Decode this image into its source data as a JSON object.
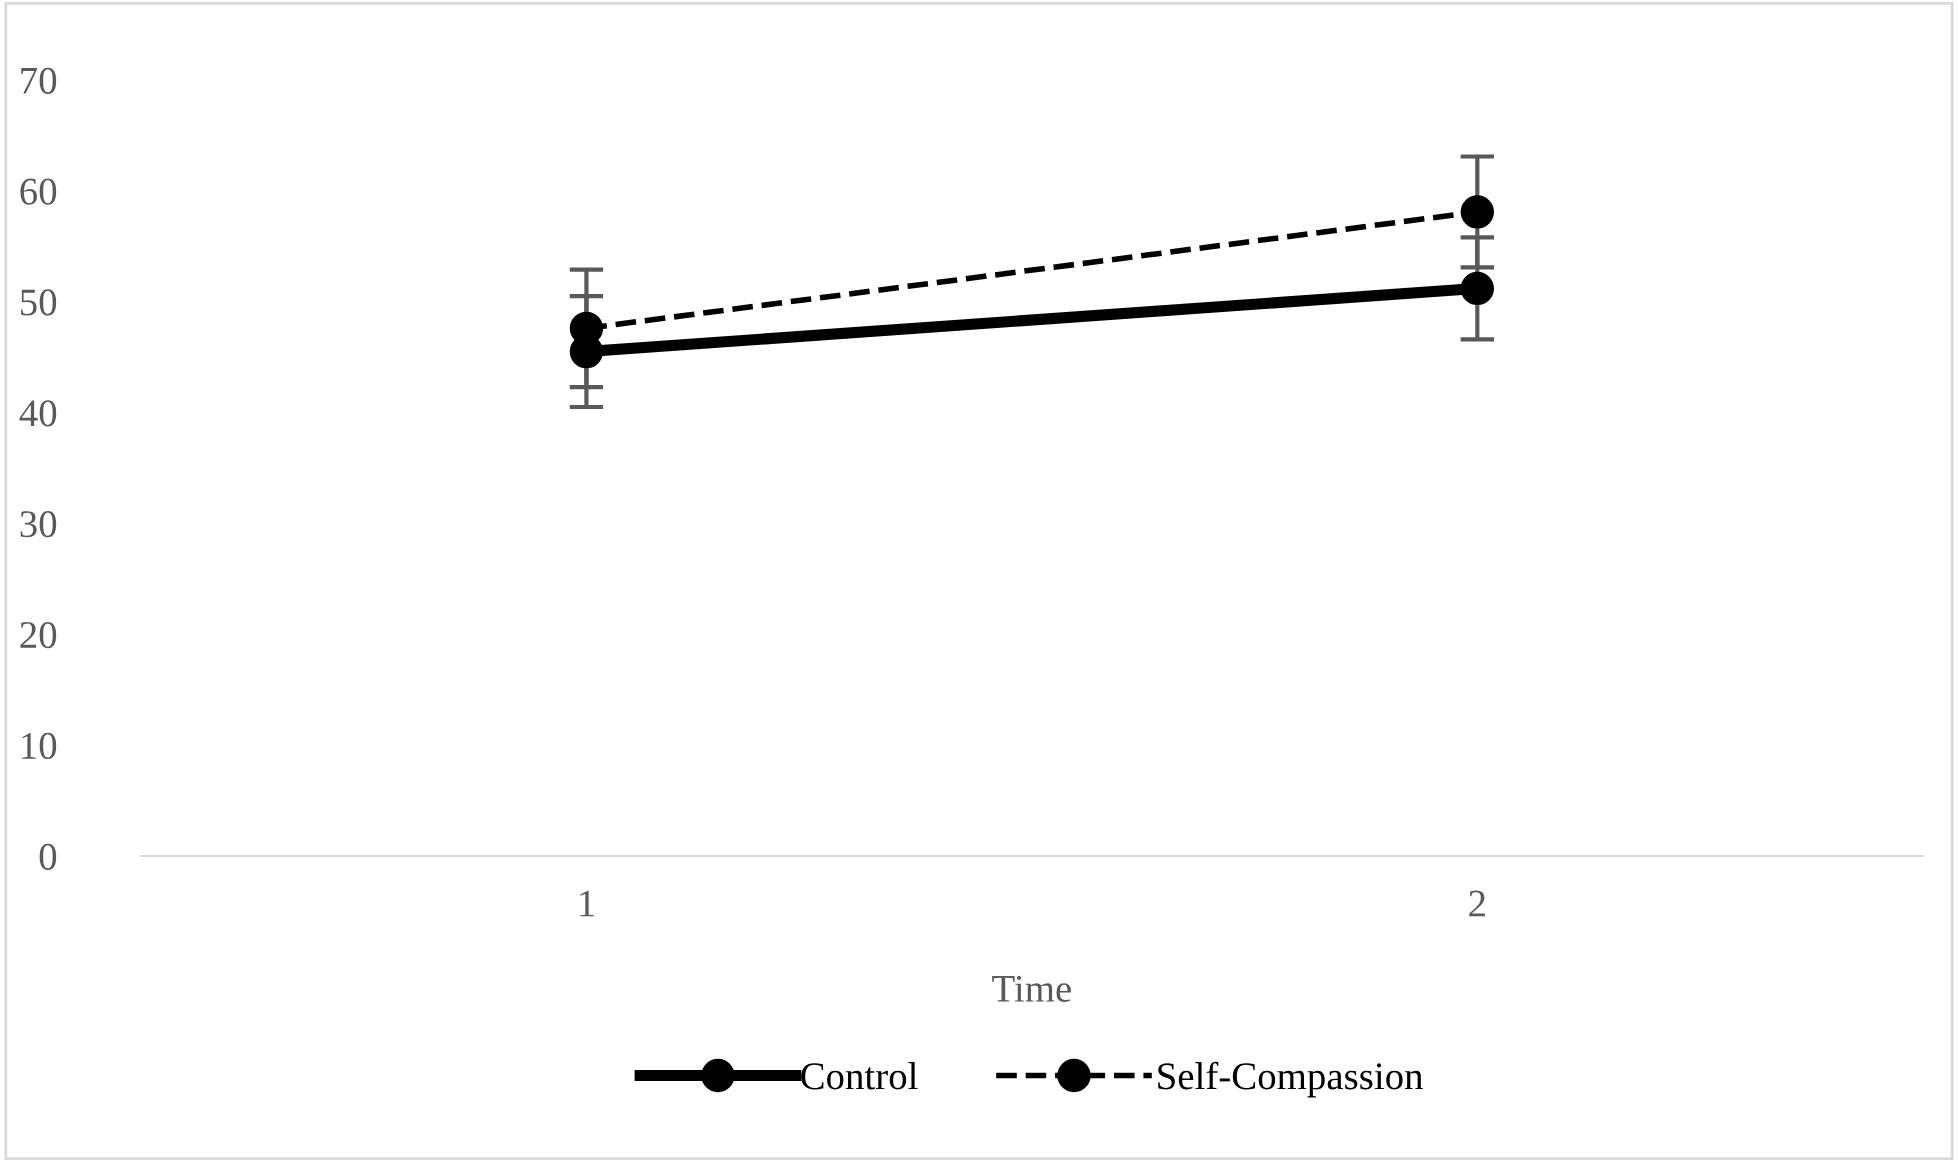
{
  "chart_data": {
    "type": "line",
    "xlabel": "Time",
    "categories": [
      "1",
      "2"
    ],
    "series": [
      {
        "name": "Control",
        "color": "#000000",
        "values": [
          45.5,
          51.2
        ],
        "errors": [
          5.0,
          4.6
        ],
        "line_style": "solid"
      },
      {
        "name": "Self-Compassion",
        "color": "#000000",
        "values": [
          47.6,
          58.1
        ],
        "errors": [
          5.3,
          5.0
        ],
        "line_style": "dashed"
      }
    ],
    "ylim": [
      0,
      70
    ],
    "yticks": [
      0,
      10,
      20,
      30,
      40,
      50,
      60,
      70
    ],
    "grid": false,
    "legend": "bottom",
    "marker": "circle"
  }
}
